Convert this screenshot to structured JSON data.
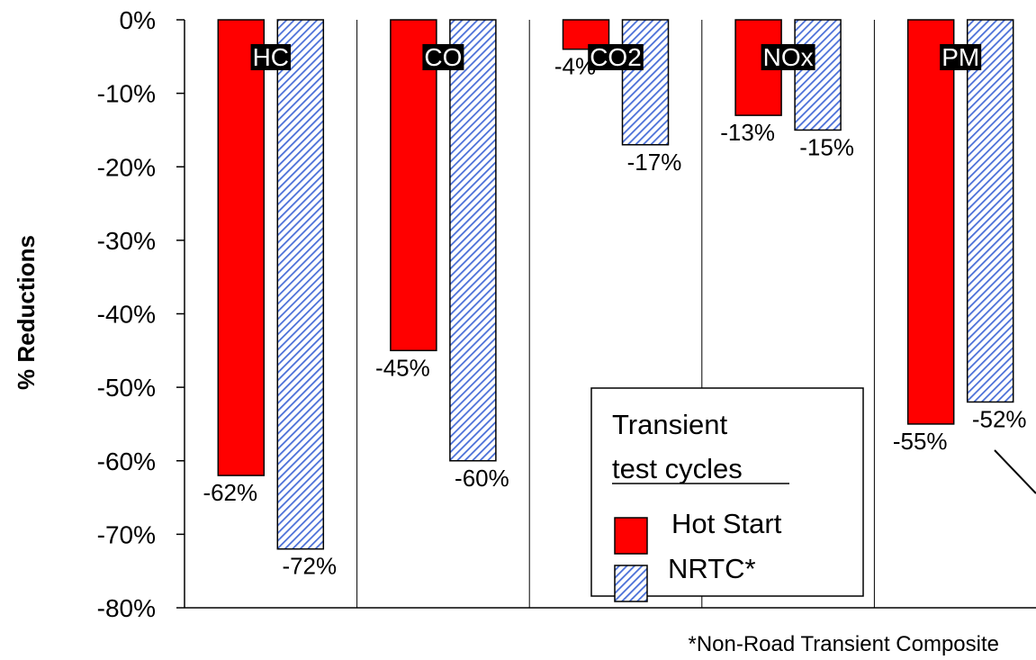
{
  "chart_data": {
    "type": "bar",
    "categories": [
      "HC",
      "CO",
      "CO2",
      "NOx",
      "PM"
    ],
    "series": [
      {
        "name": "Hot Start",
        "values": [
          -62,
          -45,
          -4,
          -13,
          -55
        ],
        "color": "#ff0000"
      },
      {
        "name": "NRTC*",
        "values": [
          -72,
          -60,
          -17,
          -15,
          -52
        ],
        "color": "#4a6fd8",
        "pattern": "diagonal-hatch"
      }
    ],
    "data_labels": [
      [
        "-62%",
        "-45%",
        "-4%",
        "-13%",
        "-55%"
      ],
      [
        "-72%",
        "-60%",
        "-17%",
        "-15%",
        "-52%"
      ]
    ],
    "yticks": [
      "0%",
      "-10%",
      "-20%",
      "-30%",
      "-40%",
      "-50%",
      "-60%",
      "-70%",
      "-80%"
    ],
    "ylim": [
      -80,
      0
    ],
    "ylabel": "% Reductions",
    "xlabel": "",
    "title": "",
    "grid": "vertical category separators",
    "legend": {
      "placement": "bottom-center",
      "title_line1": "Transient",
      "title_line2": "test cycles",
      "entries": [
        "Hot Start",
        "NRTC*"
      ]
    },
    "footnote": "*Non-Road Transient Composite"
  }
}
